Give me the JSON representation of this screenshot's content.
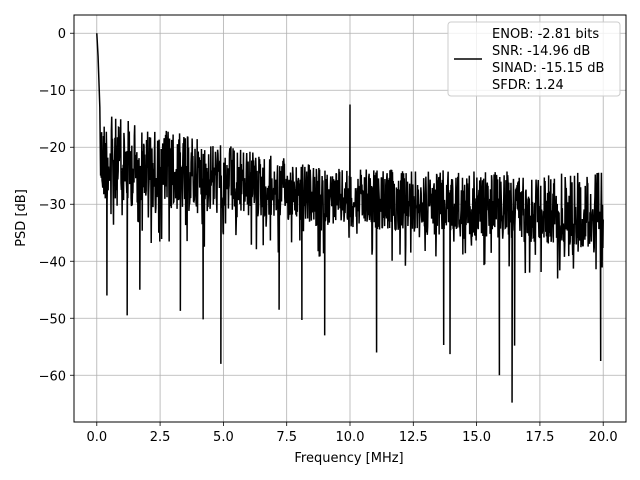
{
  "chart_data": {
    "type": "line",
    "title": "",
    "xlabel": "Frequency [MHz]",
    "ylabel": "PSD [dB]",
    "xlim": [
      -0.9,
      20.9
    ],
    "ylim": [
      -68.2,
      3.2
    ],
    "xticks": [
      0.0,
      2.5,
      5.0,
      7.5,
      10.0,
      12.5,
      15.0,
      17.5,
      20.0
    ],
    "xtick_labels": [
      "0.0",
      "2.5",
      "5.0",
      "7.5",
      "10.0",
      "12.5",
      "15.0",
      "17.5",
      "20.0"
    ],
    "yticks": [
      0,
      -10,
      -20,
      -30,
      -40,
      -50,
      -60
    ],
    "ytick_labels": [
      "0",
      "−10",
      "−20",
      "−30",
      "−40",
      "−50",
      "−60"
    ],
    "grid": true,
    "legend_position": "top-right",
    "legend": {
      "lines": [
        "ENOB: -2.81 bits",
        "SNR: -14.96 dB",
        "SINAD: -15.15 dB",
        "SFDR: 1.24"
      ]
    },
    "series": [
      {
        "color": "#000000",
        "spectrum": {
          "x_start": 0.0,
          "x_end": 20.0,
          "peak": {
            "x": 0.0,
            "y": 0.0
          },
          "upper_envelope_start": -11,
          "upper_envelope_end": -22,
          "lower_envelope_start": -30,
          "lower_envelope_end": -38,
          "notable_points": [
            {
              "x": 0.05,
              "y": -4
            },
            {
              "x": 0.12,
              "y": -13
            },
            {
              "x": 0.4,
              "y": -46
            },
            {
              "x": 1.2,
              "y": -49.5
            },
            {
              "x": 1.7,
              "y": -45
            },
            {
              "x": 3.3,
              "y": -48.7
            },
            {
              "x": 4.2,
              "y": -50.2
            },
            {
              "x": 4.9,
              "y": -58
            },
            {
              "x": 7.2,
              "y": -48.5
            },
            {
              "x": 8.1,
              "y": -50.3
            },
            {
              "x": 9.0,
              "y": -53
            },
            {
              "x": 10.0,
              "y": -12.5
            },
            {
              "x": 11.05,
              "y": -56
            },
            {
              "x": 13.7,
              "y": -54.7
            },
            {
              "x": 13.95,
              "y": -56.3
            },
            {
              "x": 15.9,
              "y": -60
            },
            {
              "x": 16.4,
              "y": -64.8
            },
            {
              "x": 16.5,
              "y": -54.8
            },
            {
              "x": 19.9,
              "y": -57.5
            }
          ]
        }
      }
    ]
  }
}
